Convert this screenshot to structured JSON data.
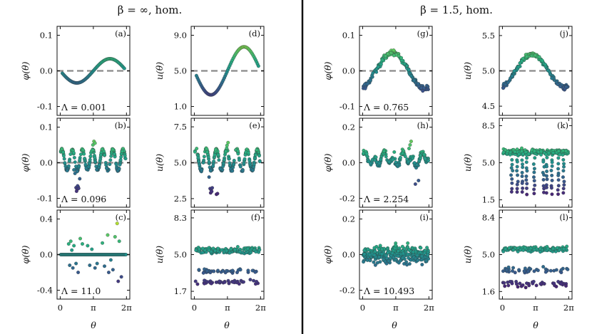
{
  "figure": {
    "column_titles": [
      "β = ∞, hom.",
      "β = 1.5, hom."
    ],
    "x_axis_label": "θ",
    "x_tick_labels": [
      "0",
      "π",
      "2π"
    ]
  },
  "chart_data": [
    {
      "id": "a",
      "type": "scatter",
      "letter": "(a)",
      "ylabel": "φ(θ)",
      "yticks": [
        "0.1",
        "0.0",
        "-0.1"
      ],
      "ytick_values": [
        0.1,
        0.0,
        -0.1
      ],
      "ylim": [
        -0.125,
        0.125
      ],
      "xlim": [
        -0.3,
        6.6
      ],
      "dashed_ref": 0.0,
      "annotation": "Λ = 0.001",
      "pattern": "arc",
      "amplitude": 0.034,
      "offset": 0.0,
      "noise": 0.0,
      "values_summary": "smooth arc: min ≈ -0.033 at θ≈π/2, max ≈ 0.033 at θ≈3π/2"
    },
    {
      "id": "d",
      "type": "scatter",
      "letter": "(d)",
      "ylabel": "u(θ)",
      "yticks": [
        "9.0",
        "5.0",
        "1.0"
      ],
      "ytick_values": [
        9.0,
        5.0,
        1.0
      ],
      "ylim": [
        0.0,
        10.0
      ],
      "xlim": [
        -0.3,
        6.6
      ],
      "dashed_ref": 5.0,
      "annotation": "",
      "pattern": "arc",
      "amplitude": 2.7,
      "offset": 5.0,
      "noise": 0.0,
      "values_summary": "smooth arc: min ≈ 2.4 at θ≈π/2, max ≈ 7.6 at θ≈3π/2"
    },
    {
      "id": "g",
      "type": "scatter",
      "letter": "(g)",
      "ylabel": "φ(θ)",
      "yticks": [
        "0.1",
        "0.0",
        "-0.1"
      ],
      "ytick_values": [
        0.1,
        0.0,
        -0.1
      ],
      "ylim": [
        -0.125,
        0.125
      ],
      "xlim": [
        -0.3,
        6.6
      ],
      "dashed_ref": 0.0,
      "annotation": "Λ = 0.765",
      "pattern": "tri",
      "amplitude": 0.05,
      "offset": 0.0,
      "noise": 0.007,
      "values_summary": "noisy peak ≈ 0.05 near θ≈1.2π, min ≈ -0.04 near 2π"
    },
    {
      "id": "j",
      "type": "scatter",
      "letter": "(j)",
      "ylabel": "u(θ)",
      "yticks": [
        "5.5",
        "5.0",
        "4.5"
      ],
      "ytick_values": [
        5.5,
        5.0,
        4.5
      ],
      "ylim": [
        4.37,
        5.63
      ],
      "xlim": [
        -0.3,
        6.6
      ],
      "dashed_ref": 5.0,
      "annotation": "",
      "pattern": "tri",
      "amplitude": 0.23,
      "offset": 5.0,
      "noise": 0.03,
      "values_summary": "noisy peak ≈ 5.25 near θ≈1.2π, min ≈ 4.8"
    },
    {
      "id": "b",
      "type": "scatter",
      "letter": "(b)",
      "ylabel": "φ(θ)",
      "yticks": [
        "0.1",
        "0.0",
        "-0.1"
      ],
      "ytick_values": [
        0.1,
        0.0,
        -0.1
      ],
      "ylim": [
        -0.125,
        0.125
      ],
      "xlim": [
        -0.3,
        6.6
      ],
      "dashed_ref": 0.0,
      "annotation": "Λ = 0.096",
      "pattern": "wave",
      "amplitude": 0.03,
      "offset": 0.0,
      "noise": 0.003,
      "outliers": [
        [
          1.5,
          -0.07
        ],
        [
          1.6,
          -0.075
        ],
        [
          1.7,
          -0.068
        ],
        [
          1.55,
          -0.08
        ],
        [
          1.65,
          -0.065
        ],
        [
          1.75,
          -0.072
        ],
        [
          1.4,
          -0.03
        ],
        [
          1.85,
          -0.045
        ],
        [
          1.3,
          -0.02
        ],
        [
          3.2,
          0.06
        ],
        [
          3.1,
          0.05
        ],
        [
          3.3,
          0.055
        ]
      ],
      "values_summary": "oscillating φ between -0.03 and 0.04, cluster ≈ -0.07 near θ≈π/2"
    },
    {
      "id": "e",
      "type": "scatter",
      "letter": "(e)",
      "ylabel": "u(θ)",
      "yticks": [
        "7.5",
        "5.0",
        "2.5"
      ],
      "ytick_values": [
        7.5,
        5.0,
        2.5
      ],
      "ylim": [
        1.9,
        8.1
      ],
      "xlim": [
        -0.3,
        6.6
      ],
      "dashed_ref": 5.0,
      "annotation": "",
      "pattern": "wave",
      "amplitude": 0.75,
      "offset": 5.0,
      "noise": 0.08,
      "outliers": [
        [
          1.5,
          3.2
        ],
        [
          1.6,
          3.1
        ],
        [
          1.7,
          3.25
        ],
        [
          1.55,
          2.9
        ],
        [
          1.65,
          3.0
        ],
        [
          2.1,
          2.8
        ],
        [
          2.2,
          2.85
        ],
        [
          1.4,
          4.0
        ],
        [
          3.2,
          6.4
        ],
        [
          3.1,
          6.2
        ]
      ],
      "values_summary": "oscillating u between 4.3 and 6.0, cluster ≈ 3.0"
    },
    {
      "id": "h",
      "type": "scatter",
      "letter": "(h)",
      "ylabel": "φ(θ)",
      "yticks": [
        "0.2",
        "0.0",
        "-0.2"
      ],
      "ytick_values": [
        0.2,
        0.0,
        -0.2
      ],
      "ylim": [
        -0.25,
        0.25
      ],
      "xlim": [
        -0.3,
        6.6
      ],
      "dashed_ref": null,
      "annotation": "Λ = 2.254",
      "pattern": "bumpy",
      "amplitude": 0.05,
      "offset": 0.02,
      "noise": 0.015,
      "outliers": [
        [
          4.5,
          0.1
        ],
        [
          4.6,
          0.12
        ],
        [
          4.4,
          0.08
        ],
        [
          5.0,
          -0.12
        ],
        [
          5.3,
          -0.1
        ],
        [
          3.0,
          0.06
        ]
      ],
      "values_summary": "fluctuating φ around 0.02, range ≈ -0.12 to 0.12"
    },
    {
      "id": "k",
      "type": "scatter",
      "letter": "(k)",
      "ylabel": "u(θ)",
      "yticks": [
        "8.5",
        "5.0",
        "1.5"
      ],
      "ytick_values": [
        8.5,
        5.0,
        1.5
      ],
      "ylim": [
        0.8,
        9.2
      ],
      "xlim": [
        -0.3,
        6.6
      ],
      "dashed_ref": null,
      "annotation": "",
      "pattern": "drips",
      "amplitude": 0.5,
      "offset": 6.0,
      "noise": 0.25,
      "values_summary": "dense band ≈ 5.5–6.5 with downward streaks to ≈ 2"
    },
    {
      "id": "c",
      "type": "scatter",
      "letter": "(c)",
      "ylabel": "φ(θ)",
      "yticks": [
        "0.4",
        "0.0",
        "-0.4"
      ],
      "ytick_values": [
        0.4,
        0.0,
        -0.4
      ],
      "ylim": [
        -0.5,
        0.5
      ],
      "xlim": [
        -0.3,
        6.6
      ],
      "dashed_ref": 0.0,
      "annotation": "Λ = 11.0",
      "pattern": "flat",
      "amplitude": 0.0,
      "offset": 0.0,
      "noise": 0.0,
      "scatter_points": [
        [
          0.8,
          0.12
        ],
        [
          1.0,
          0.15
        ],
        [
          1.3,
          0.1
        ],
        [
          1.9,
          0.18
        ],
        [
          2.1,
          0.12
        ],
        [
          2.6,
          0.1
        ],
        [
          4.0,
          0.13
        ],
        [
          4.5,
          0.22
        ],
        [
          5.2,
          0.2
        ],
        [
          5.4,
          0.35
        ],
        [
          5.6,
          0.15
        ],
        [
          0.9,
          -0.12
        ],
        [
          1.2,
          -0.15
        ],
        [
          1.5,
          -0.1
        ],
        [
          1.7,
          -0.2
        ],
        [
          2.8,
          -0.12
        ],
        [
          3.3,
          -0.15
        ],
        [
          3.5,
          -0.1
        ],
        [
          4.2,
          -0.13
        ],
        [
          4.6,
          -0.2
        ],
        [
          5.0,
          -0.17
        ],
        [
          5.5,
          -0.3
        ],
        [
          5.8,
          -0.25
        ],
        [
          1.1,
          0.05
        ],
        [
          3.0,
          0.06
        ],
        [
          4.8,
          -0.06
        ]
      ],
      "values_summary": "dense flat line at 0 with sparse points between -0.35 and 0.35"
    },
    {
      "id": "f",
      "type": "scatter",
      "letter": "(f)",
      "ylabel": "u(θ)",
      "yticks": [
        "8.3",
        "5.0",
        "1.7"
      ],
      "ytick_values": [
        8.3,
        5.0,
        1.7
      ],
      "ylim": [
        1.0,
        9.0
      ],
      "xlim": [
        -0.3,
        6.6
      ],
      "dashed_ref": null,
      "annotation": "",
      "pattern": "bands",
      "bands": [
        [
          5.4,
          0.25
        ],
        [
          3.5,
          0.2
        ],
        [
          2.5,
          0.2
        ]
      ],
      "values_summary": "band ≈ 5.4, sparse rows ≈ 3.5 and ≈ 2.5"
    },
    {
      "id": "i",
      "type": "scatter",
      "letter": "(i)",
      "ylabel": "φ(θ)",
      "yticks": [
        "0.2",
        "0.0",
        "-0.2"
      ],
      "ytick_values": [
        0.2,
        0.0,
        -0.2
      ],
      "ylim": [
        -0.25,
        0.25
      ],
      "xlim": [
        -0.3,
        6.6
      ],
      "dashed_ref": null,
      "annotation": "Λ = 10.493",
      "pattern": "noise",
      "amplitude": 0.0,
      "offset": 0.0,
      "noise": 0.045,
      "values_summary": "dense noisy band around 0, range ≈ -0.13 to 0.13"
    },
    {
      "id": "l",
      "type": "scatter",
      "letter": "(l)",
      "ylabel": "u(θ)",
      "yticks": [
        "8.4",
        "5.0",
        "1.6"
      ],
      "ytick_values": [
        8.4,
        5.0,
        1.6
      ],
      "ylim": [
        0.9,
        9.1
      ],
      "xlim": [
        -0.3,
        6.6
      ],
      "dashed_ref": null,
      "annotation": "",
      "pattern": "bands",
      "bands": [
        [
          5.5,
          0.22
        ],
        [
          3.6,
          0.3
        ],
        [
          2.3,
          0.25
        ]
      ],
      "values_summary": "band ≈ 5.5, sparse rows ≈ 3.6 and ≈ 2.3"
    }
  ],
  "colors": {
    "viridis": [
      "#440154",
      "#472c7a",
      "#3b518b",
      "#2c718e",
      "#21908d",
      "#27ad81",
      "#5cc863",
      "#aadc32",
      "#fde725"
    ],
    "dashed_line": "#8a8a8a",
    "divider": "#111111"
  }
}
